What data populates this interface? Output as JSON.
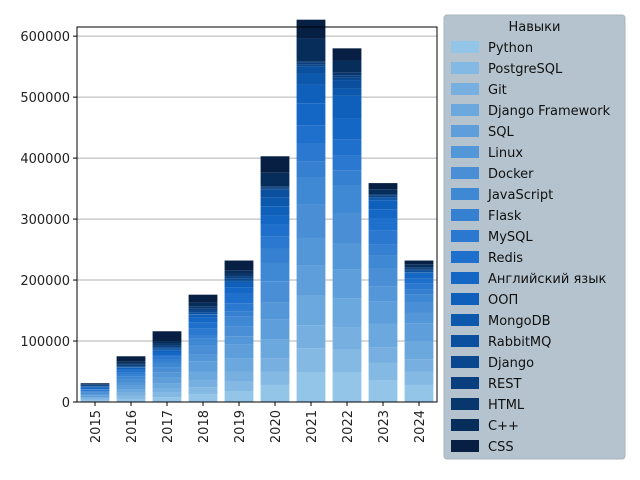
{
  "chart_data": {
    "type": "bar",
    "stacked": true,
    "title": "",
    "xlabel": "",
    "ylabel": "",
    "categories": [
      "2015",
      "2016",
      "2017",
      "2018",
      "2019",
      "2020",
      "2021",
      "2022",
      "2023",
      "2024"
    ],
    "ylim": [
      0,
      615000
    ],
    "yticks": [
      0,
      100000,
      200000,
      300000,
      400000,
      500000,
      600000
    ],
    "ytick_labels": [
      "0",
      "100000",
      "200000",
      "300000",
      "400000",
      "500000",
      "600000"
    ],
    "grid": "horizontal",
    "legend": {
      "title": "Навыки",
      "placement": "outside-right",
      "background": "#b4c3cd"
    },
    "series": [
      {
        "name": "Python",
        "color": "#93c5e8",
        "values": [
          2000,
          5000,
          8000,
          13000,
          18000,
          28000,
          48000,
          48000,
          36000,
          28000
        ]
      },
      {
        "name": "PostgreSQL",
        "color": "#83b9e3",
        "values": [
          2000,
          5000,
          7000,
          11000,
          15000,
          22000,
          40000,
          38000,
          28000,
          22000
        ]
      },
      {
        "name": "Git",
        "color": "#77b0e0",
        "values": [
          2000,
          5000,
          7000,
          12000,
          17000,
          22000,
          38000,
          36000,
          26000,
          20000
        ]
      },
      {
        "name": "Django Framework",
        "color": "#6aa8de",
        "values": [
          2000,
          5000,
          8000,
          14000,
          21000,
          30000,
          48000,
          48000,
          38000,
          30000
        ]
      },
      {
        "name": "SQL",
        "color": "#5e9fdb",
        "values": [
          3000,
          7000,
          10000,
          17000,
          24000,
          33000,
          50000,
          48000,
          37000,
          29000
        ]
      },
      {
        "name": "Linux",
        "color": "#5497d8",
        "values": [
          2000,
          5000,
          8000,
          11000,
          13000,
          28000,
          45000,
          42000,
          24000,
          17000
        ]
      },
      {
        "name": "Docker",
        "color": "#4a8fd5",
        "values": [
          2000,
          5000,
          8000,
          14000,
          16000,
          35000,
          55000,
          50000,
          30000,
          18000
        ]
      },
      {
        "name": "JavaScript",
        "color": "#3f88d3",
        "values": [
          2000,
          5000,
          8000,
          12000,
          16000,
          30000,
          45000,
          45000,
          22000,
          12000
        ]
      },
      {
        "name": "Flask",
        "color": "#3580d1",
        "values": [
          1000,
          3000,
          5000,
          5000,
          8000,
          23000,
          25000,
          25000,
          18000,
          8000
        ]
      },
      {
        "name": "MySQL",
        "color": "#2a78cf",
        "values": [
          2000,
          4000,
          5000,
          11000,
          14000,
          20000,
          30000,
          25000,
          22000,
          10000
        ]
      },
      {
        "name": "Redis",
        "color": "#1f6fcc",
        "values": [
          1000,
          2000,
          3000,
          10000,
          16000,
          20000,
          30000,
          25000,
          20000,
          8000
        ]
      },
      {
        "name": "Английский язык",
        "color": "#1567c5",
        "values": [
          2000,
          3000,
          5000,
          8000,
          10000,
          15000,
          36000,
          35000,
          15000,
          8000
        ]
      },
      {
        "name": "ООП",
        "color": "#0e60bb",
        "values": [
          1000,
          2000,
          3000,
          5000,
          8000,
          15000,
          30000,
          37000,
          15000,
          2000
        ]
      },
      {
        "name": "MongoDB",
        "color": "#0b58ad",
        "values": [
          1000,
          1000,
          1000,
          1000,
          1000,
          15000,
          18000,
          12000,
          2000,
          1000
        ]
      },
      {
        "name": "RabbitMQ",
        "color": "#0a509e",
        "values": [
          1000,
          1000,
          2000,
          3000,
          3000,
          12000,
          12000,
          14000,
          2000,
          2000
        ]
      },
      {
        "name": "Django",
        "color": "#09488f",
        "values": [
          1000,
          1000,
          2000,
          3000,
          3000,
          2000,
          3000,
          4000,
          2000,
          2000
        ]
      },
      {
        "name": "REST",
        "color": "#093f7f",
        "values": [
          1000,
          2000,
          2000,
          3000,
          3000,
          2000,
          4000,
          4000,
          2000,
          2000
        ]
      },
      {
        "name": "HTML",
        "color": "#08376d",
        "values": [
          1000,
          2000,
          4000,
          4000,
          4000,
          2000,
          2000,
          4000,
          2000,
          2000
        ]
      },
      {
        "name": "C++",
        "color": "#072e5b",
        "values": [
          1000,
          4000,
          4000,
          6000,
          6000,
          22000,
          37000,
          20000,
          8000,
          5000
        ]
      },
      {
        "name": "CSS",
        "color": "#061f43",
        "values": [
          1000,
          8000,
          16000,
          13000,
          16000,
          27000,
          31000,
          20000,
          10000,
          6000
        ]
      }
    ]
  }
}
